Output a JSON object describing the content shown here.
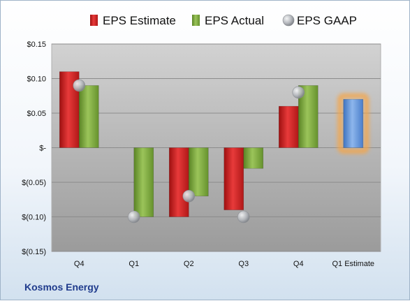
{
  "company": "Kosmos Energy",
  "chart_data": {
    "type": "bar",
    "categories": [
      "Q4",
      "Q1",
      "Q2",
      "Q3",
      "Q4",
      "Q1 Estimate"
    ],
    "series": [
      {
        "name": "EPS Estimate",
        "values": [
          0.11,
          null,
          -0.1,
          -0.09,
          0.06,
          0.07
        ],
        "color": "#cc1f1f"
      },
      {
        "name": "EPS Actual",
        "values": [
          0.09,
          -0.1,
          -0.07,
          -0.03,
          0.09,
          null
        ],
        "color": "#7aa83a"
      },
      {
        "name": "EPS GAAP",
        "values": [
          0.09,
          -0.1,
          -0.07,
          -0.1,
          0.08,
          null
        ],
        "color": "#a9adb3"
      }
    ],
    "highlight": {
      "category": "Q1 Estimate",
      "value": 0.07,
      "color": "#5b8fd6",
      "glow": "#f5a64a"
    },
    "ylim": [
      -0.15,
      0.15
    ],
    "yticks": [
      0.15,
      0.1,
      0.05,
      0,
      -0.05,
      -0.1,
      -0.15
    ],
    "ytick_labels": [
      "$0.15",
      "$0.10",
      "$0.05",
      "$-",
      "$(0.05)",
      "$(0.10)",
      "$(0.15)"
    ],
    "legend_position": "top",
    "grid": true
  }
}
